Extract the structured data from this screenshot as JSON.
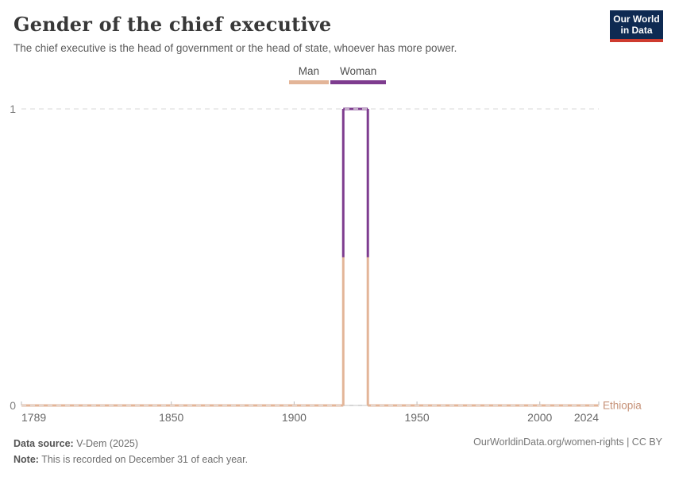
{
  "header": {
    "title": "Gender of the chief executive",
    "subtitle": "The chief executive is the head of government or the head of state, whoever has more power.",
    "logo": {
      "line1": "Our World",
      "line2": "in Data",
      "bg_color": "#0E2A52",
      "stripe_color": "#CE3B2F"
    }
  },
  "legend": {
    "items": [
      {
        "label": "Man",
        "color": "#E3B598"
      },
      {
        "label": "Woman",
        "color": "#7E3C8F"
      }
    ]
  },
  "chart_data": {
    "type": "line",
    "title": "Gender of the chief executive",
    "entity": "Ethiopia",
    "entity_label_color": "#C69177",
    "x_range": [
      1789,
      2024
    ],
    "y_range": [
      0,
      1
    ],
    "x_ticks": [
      1789,
      1850,
      1900,
      1950,
      2000,
      2024
    ],
    "y_ticks": [
      0,
      1
    ],
    "grid": true,
    "legend_position": "top-center",
    "categories": {
      "0": "Man",
      "1": "Woman"
    },
    "series": [
      {
        "name": "Ethiopia",
        "segments": [
          {
            "from": 1789,
            "to": 1920,
            "value": 0,
            "category": "Man",
            "color": "#E3B598"
          },
          {
            "from": 1920,
            "to": 1930,
            "value": 1,
            "category": "Woman",
            "color": "#7E3C8F"
          },
          {
            "from": 1930,
            "to": 2024,
            "value": 0,
            "category": "Man",
            "color": "#E3B598"
          }
        ]
      }
    ],
    "axis_colors": {
      "axis_line": "#c8c8c8",
      "gridline": "#e4e4e4",
      "tick_mark": "#bbbbbb",
      "tick_label": "#686868",
      "y_label": "#808080"
    }
  },
  "footer": {
    "source_label": "Data source:",
    "source_value": " V-Dem (2025)",
    "note_label": "Note:",
    "note_value": " This is recorded on December 31 of each year.",
    "rights": "OurWorldinData.org/women-rights | CC BY"
  }
}
